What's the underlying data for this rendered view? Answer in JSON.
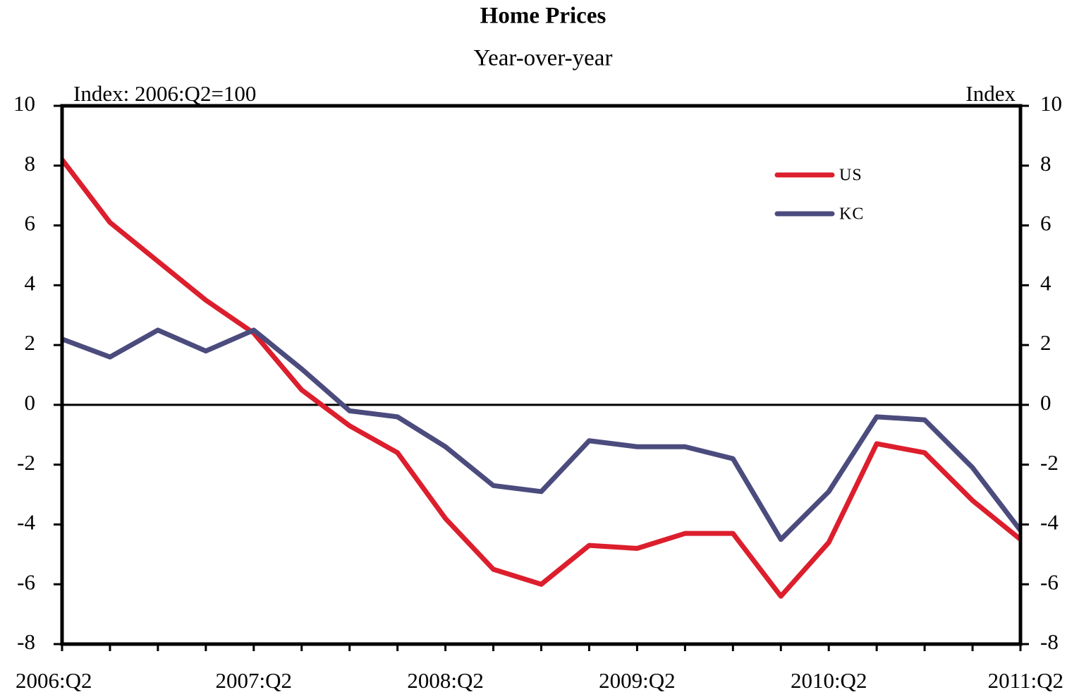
{
  "chart_data": {
    "type": "line",
    "title": "Home Prices",
    "subtitle": "Year-over-year",
    "y_axis_label": "Index: 2006:Q2=100",
    "y2_axis_label": "Index",
    "categories": [
      "2006:Q2",
      null,
      null,
      null,
      "2007:Q2",
      null,
      null,
      null,
      "2008:Q2",
      null,
      null,
      null,
      "2009:Q2",
      null,
      null,
      null,
      "2010:Q2",
      null,
      null,
      null,
      "2011:Q2"
    ],
    "series": [
      {
        "name": "US",
        "color": "#dc1e2d",
        "values": [
          8.2,
          6.1,
          4.8,
          3.5,
          2.4,
          0.5,
          -0.7,
          -1.6,
          -3.8,
          -5.5,
          -6.0,
          -4.7,
          -4.8,
          -4.3,
          -4.3,
          -6.4,
          -4.6,
          -1.3,
          -1.6,
          -3.2,
          -4.5
        ]
      },
      {
        "name": "KC",
        "color": "#4b4b7d",
        "values": [
          2.2,
          1.6,
          2.5,
          1.8,
          2.5,
          1.2,
          -0.2,
          -0.4,
          -1.4,
          -2.7,
          -2.9,
          -1.2,
          -1.4,
          -1.4,
          -1.8,
          -4.5,
          -2.9,
          -0.4,
          -0.5,
          -2.1,
          -4.2
        ]
      }
    ],
    "ylim": [
      -8,
      10
    ],
    "yticks": [
      -8,
      -6,
      -4,
      -2,
      0,
      2,
      4,
      6,
      8,
      10
    ],
    "y2lim": [
      -8,
      10
    ],
    "y2ticks": [
      -8,
      -6,
      -4,
      -2,
      0,
      2,
      4,
      6,
      8,
      10
    ],
    "grid": false,
    "legend": "upper right"
  }
}
